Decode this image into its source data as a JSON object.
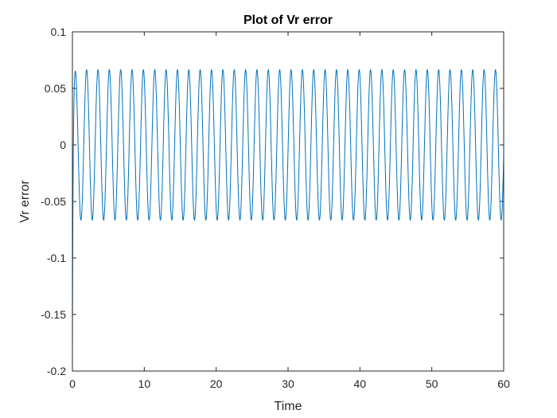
{
  "chart_data": {
    "type": "line",
    "title": "Plot of Vr error",
    "xlabel": "Time",
    "ylabel": "Vr error",
    "xlim": [
      0,
      60
    ],
    "ylim": [
      -0.2,
      0.1
    ],
    "xticks": [
      0,
      10,
      20,
      30,
      40,
      50,
      60
    ],
    "xtick_labels": [
      "0",
      "10",
      "20",
      "30",
      "40",
      "50",
      "60"
    ],
    "yticks": [
      -0.2,
      -0.15,
      -0.1,
      -0.05,
      0,
      0.05,
      0.1
    ],
    "ytick_labels": [
      "-0.2",
      "-0.15",
      "-0.1",
      "-0.05",
      "0",
      "0.05",
      "0.1"
    ],
    "grid": false,
    "legend": "none",
    "series": [
      {
        "color": "#0072BD",
        "description_of_signal": "initial transient from about -0.185 at t=0, then steady sinusoidal oscillation",
        "initial_value": -0.185,
        "amplitude": 0.0665,
        "period": 1.58,
        "cycles_shown": 38,
        "end_value": 0.06,
        "x": [
          0,
          0.05,
          0.15,
          0.3,
          0.5,
          0.7,
          0.9,
          1.1,
          1.29,
          1.5,
          1.7,
          2.08,
          2.47,
          2.87,
          3.26,
          3.66
        ],
        "y": [
          -0.185,
          -0.12,
          -0.02,
          0.045,
          0.066,
          0.04,
          -0.02,
          -0.06,
          -0.0665,
          -0.04,
          0.0,
          0.0665,
          0.0,
          -0.0665,
          0.0,
          0.0665
        ]
      }
    ]
  }
}
